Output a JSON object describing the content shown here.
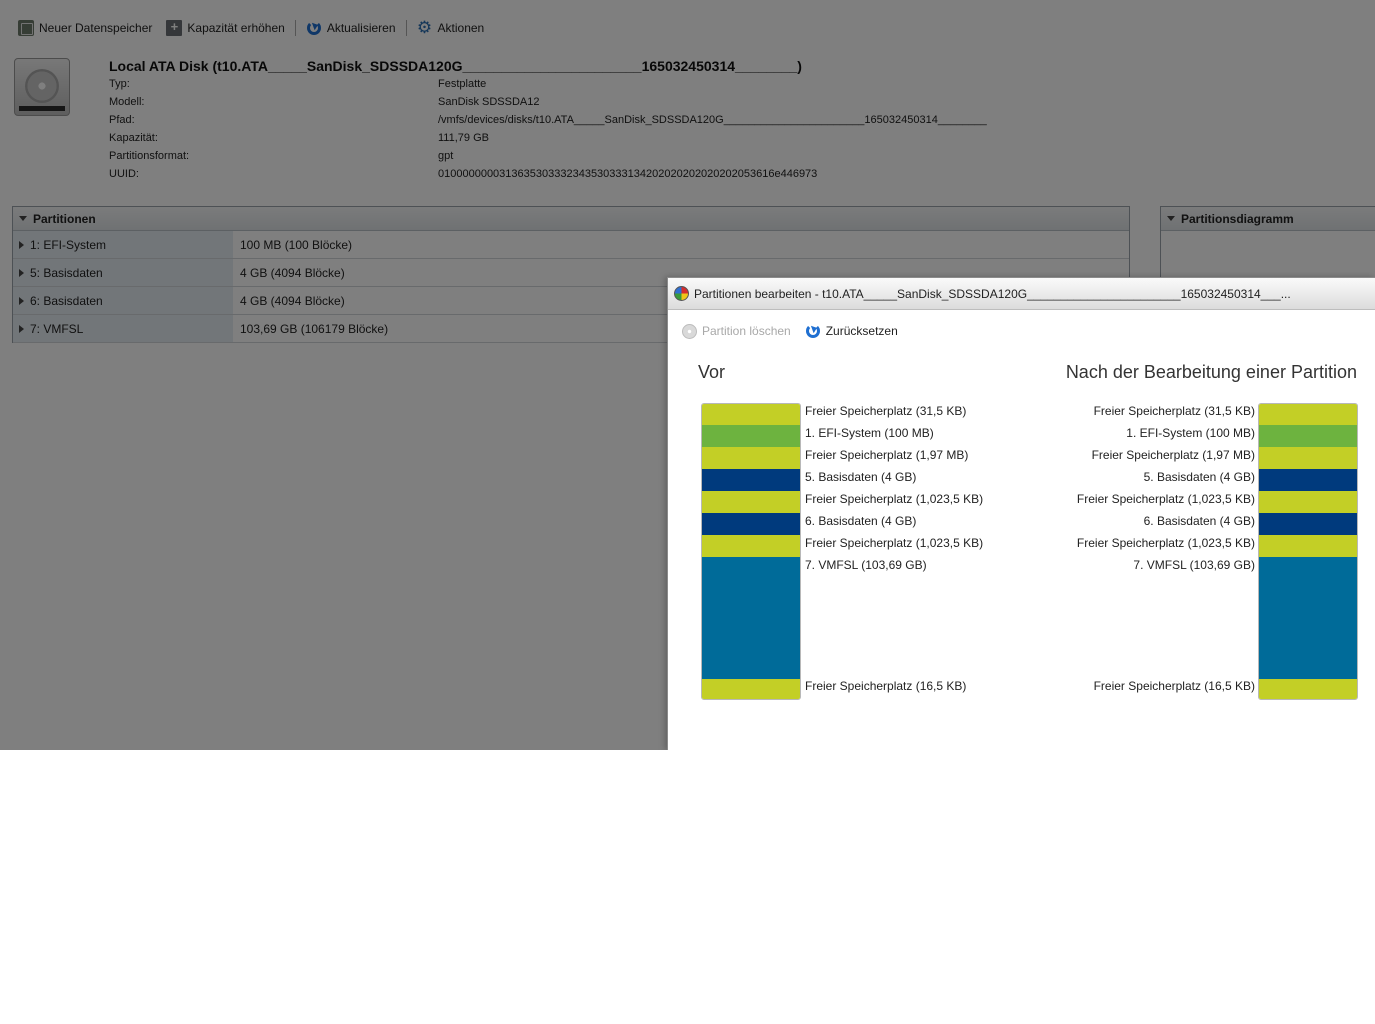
{
  "toolbar": {
    "new_datastore": "Neuer Datenspeicher",
    "increase_capacity": "Kapazität erhöhen",
    "refresh": "Aktualisieren",
    "actions": "Aktionen"
  },
  "disk": {
    "title": "Local ATA Disk (t10.ATA_____SanDisk_SDSSDA120G_______________________165032450314________)",
    "properties": [
      {
        "key": "Typ:",
        "value": "Festplatte"
      },
      {
        "key": "Modell:",
        "value": "SanDisk SDSSDA12"
      },
      {
        "key": "Pfad:",
        "value": "/vmfs/devices/disks/t10.ATA_____SanDisk_SDSSDA120G_______________________165032450314________"
      },
      {
        "key": "Kapazität:",
        "value": "111,79 GB"
      },
      {
        "key": "Partitionsformat:",
        "value": "gpt"
      },
      {
        "key": "UUID:",
        "value": "0100000000313635303332343530333134202020202020202053616e446973"
      }
    ]
  },
  "partitions_panel": {
    "title": "Partitionen",
    "rows": [
      {
        "name": "1: EFI-System",
        "size": "100 MB (100 Blöcke)"
      },
      {
        "name": "5: Basisdaten",
        "size": "4 GB (4094 Blöcke)"
      },
      {
        "name": "6: Basisdaten",
        "size": "4 GB (4094 Blöcke)"
      },
      {
        "name": "7: VMFSL",
        "size": "103,69 GB (106179 Blöcke)"
      }
    ]
  },
  "diagram_panel": {
    "title": "Partitionsdiagramm"
  },
  "dialog": {
    "title": "Partitionen bearbeiten - t10.ATA_____SanDisk_SDSSDA120G_______________________165032450314___...",
    "delete_partition": "Partition löschen",
    "reset": "Zurücksetzen",
    "before_heading": "Vor",
    "after_heading": "Nach der Bearbeitung einer Partition",
    "colors": {
      "free": "#c3cf26",
      "efi": "#6db33f",
      "basic": "#003a7d",
      "vmfsl": "#006b99"
    },
    "segments": [
      {
        "kind": "free",
        "label": "Freier Speicherplatz  (31,5 KB)"
      },
      {
        "kind": "efi",
        "label": "1. EFI-System  (100 MB)"
      },
      {
        "kind": "free",
        "label": "Freier Speicherplatz  (1,97 MB)"
      },
      {
        "kind": "basic",
        "label": "5. Basisdaten  (4 GB)"
      },
      {
        "kind": "free",
        "label": "Freier Speicherplatz  (1,023,5 KB)"
      },
      {
        "kind": "basic",
        "label": "6. Basisdaten  (4 GB)"
      },
      {
        "kind": "free",
        "label": "Freier Speicherplatz  (1,023,5 KB)"
      },
      {
        "kind": "vmfsl",
        "label": "7. VMFSL  (103,69 GB)"
      },
      {
        "kind": "free",
        "label": "Freier Speicherplatz  (16,5 KB)"
      }
    ]
  }
}
